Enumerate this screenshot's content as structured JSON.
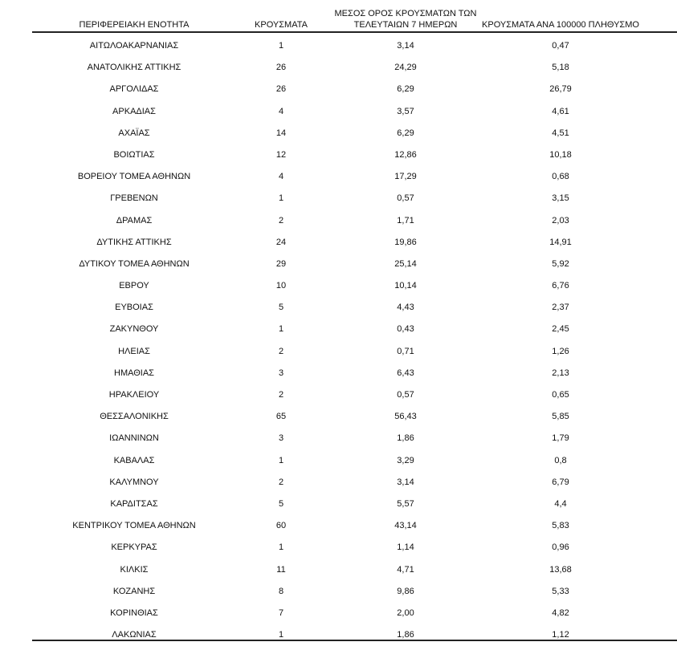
{
  "header": {
    "region": "ΠΕΡΙΦΕΡΕΙΑΚΗ ΕΝΟΤΗΤΑ",
    "cases": "ΚΡΟΥΣΜΑΤΑ",
    "avg_line1": "ΜΕΣΟΣ ΟΡΟΣ ΚΡΟΥΣΜΑΤΩΝ ΤΩΝ",
    "avg_line2": "ΤΕΛΕΥΤΑΙΩΝ 7 ΗΜΕΡΩΝ",
    "per100k": "ΚΡΟΥΣΜΑΤΑ ΑΝΑ 100000 ΠΛΗΘΥΣΜΟ"
  },
  "rows": [
    [
      "ΑΙΤΩΛΟΑΚΑΡΝΑΝΙΑΣ",
      "1",
      "3,14",
      "0,47"
    ],
    [
      "ΑΝΑΤΟΛΙΚΗΣ ΑΤΤΙΚΗΣ",
      "26",
      "24,29",
      "5,18"
    ],
    [
      "ΑΡΓΟΛΙΔΑΣ",
      "26",
      "6,29",
      "26,79"
    ],
    [
      "ΑΡΚΑΔΙΑΣ",
      "4",
      "3,57",
      "4,61"
    ],
    [
      "ΑΧΑΪΑΣ",
      "14",
      "6,29",
      "4,51"
    ],
    [
      "ΒΟΙΩΤΙΑΣ",
      "12",
      "12,86",
      "10,18"
    ],
    [
      "ΒΟΡΕΙΟΥ ΤΟΜΕΑ ΑΘΗΝΩΝ",
      "4",
      "17,29",
      "0,68"
    ],
    [
      "ΓΡΕΒΕΝΩΝ",
      "1",
      "0,57",
      "3,15"
    ],
    [
      "ΔΡΑΜΑΣ",
      "2",
      "1,71",
      "2,03"
    ],
    [
      "ΔΥΤΙΚΗΣ ΑΤΤΙΚΗΣ",
      "24",
      "19,86",
      "14,91"
    ],
    [
      "ΔΥΤΙΚΟΥ ΤΟΜΕΑ ΑΘΗΝΩΝ",
      "29",
      "25,14",
      "5,92"
    ],
    [
      "ΕΒΡΟΥ",
      "10",
      "10,14",
      "6,76"
    ],
    [
      "ΕΥΒΟΙΑΣ",
      "5",
      "4,43",
      "2,37"
    ],
    [
      "ΖΑΚΥΝΘΟΥ",
      "1",
      "0,43",
      "2,45"
    ],
    [
      "ΗΛΕΙΑΣ",
      "2",
      "0,71",
      "1,26"
    ],
    [
      "ΗΜΑΘΙΑΣ",
      "3",
      "6,43",
      "2,13"
    ],
    [
      "ΗΡΑΚΛΕΙΟΥ",
      "2",
      "0,57",
      "0,65"
    ],
    [
      "ΘΕΣΣΑΛΟΝΙΚΗΣ",
      "65",
      "56,43",
      "5,85"
    ],
    [
      "ΙΩΑΝΝΙΝΩΝ",
      "3",
      "1,86",
      "1,79"
    ],
    [
      "ΚΑΒΑΛΑΣ",
      "1",
      "3,29",
      "0,8"
    ],
    [
      "ΚΑΛΥΜΝΟΥ",
      "2",
      "3,14",
      "6,79"
    ],
    [
      "ΚΑΡΔΙΤΣΑΣ",
      "5",
      "5,57",
      "4,4"
    ],
    [
      "ΚΕΝΤΡΙΚΟΥ ΤΟΜΕΑ ΑΘΗΝΩΝ",
      "60",
      "43,14",
      "5,83"
    ],
    [
      "ΚΕΡΚΥΡΑΣ",
      "1",
      "1,14",
      "0,96"
    ],
    [
      "ΚΙΛΚΙΣ",
      "11",
      "4,71",
      "13,68"
    ],
    [
      "ΚΟΖΑΝΗΣ",
      "8",
      "9,86",
      "5,33"
    ],
    [
      "ΚΟΡΙΝΘΙΑΣ",
      "7",
      "2,00",
      "4,82"
    ],
    [
      "ΛΑΚΩΝΙΑΣ",
      "1",
      "1,86",
      "1,12"
    ]
  ]
}
